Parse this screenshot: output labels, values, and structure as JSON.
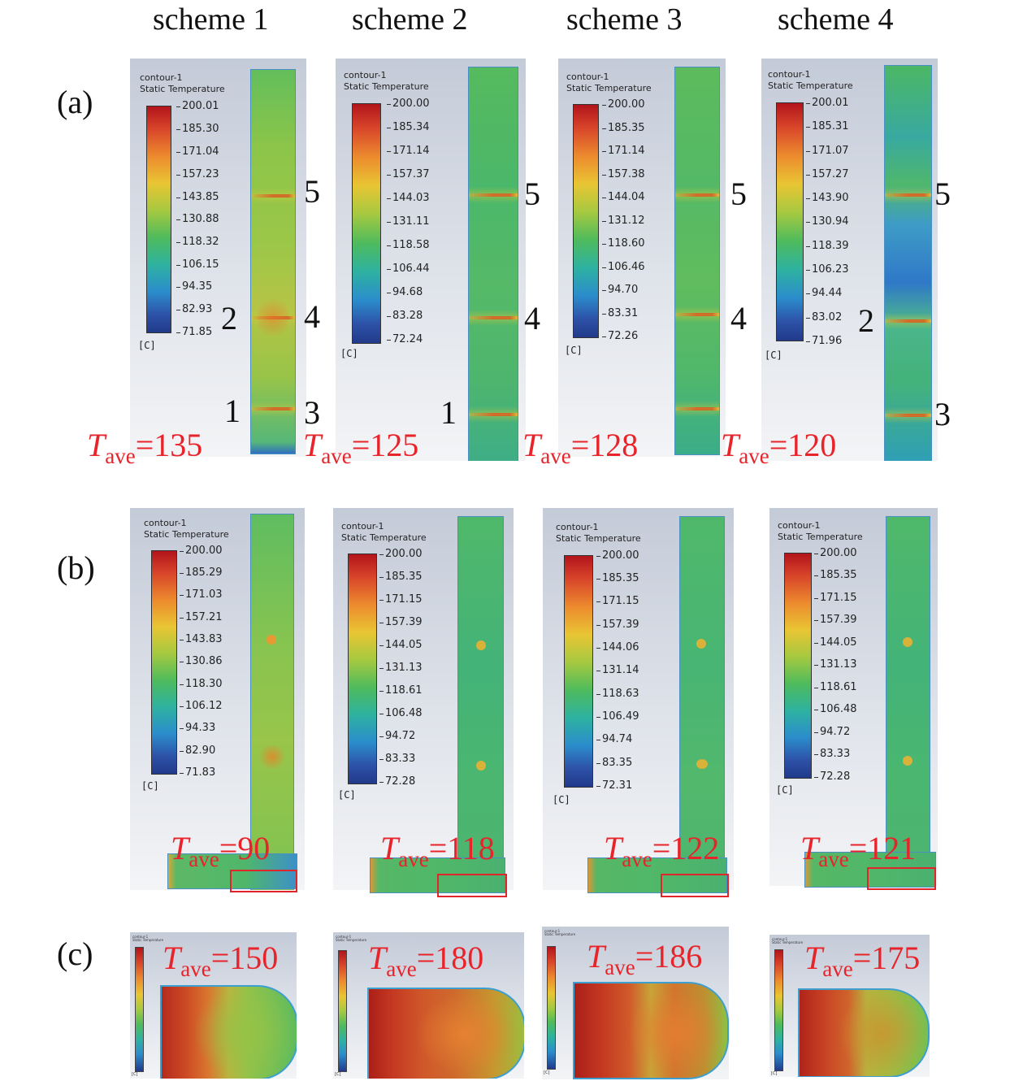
{
  "schemes": [
    "scheme 1",
    "scheme 2",
    "scheme 3",
    "scheme 4"
  ],
  "row_labels": [
    "(a)",
    "(b)",
    "(c)"
  ],
  "legend": {
    "title_line1": "contour-1",
    "title_line2": "Static Temperature",
    "unit": "[C]"
  },
  "colors": {
    "tave_text": "#e8232a",
    "box_outline": "#e0252b",
    "hot": "#b2141b",
    "cool": "#213a8a"
  },
  "row_a": {
    "panels": [
      {
        "ticks": [
          "200.01",
          "185.30",
          "171.04",
          "157.23",
          "143.85",
          "130.88",
          "118.32",
          "106.15",
          "94.35",
          "82.93",
          "71.85"
        ],
        "markers_right": [
          "5",
          "4",
          "3"
        ],
        "markers_left": [
          "2",
          "1"
        ],
        "tave_label": "T",
        "tave_sub": "ave",
        "tave_value": "=135"
      },
      {
        "ticks": [
          "200.00",
          "185.34",
          "171.14",
          "157.37",
          "144.03",
          "131.11",
          "118.58",
          "106.44",
          "94.68",
          "83.28",
          "72.24"
        ],
        "markers_right": [
          "5",
          "4"
        ],
        "markers_left": [
          "1"
        ],
        "tave_label": "T",
        "tave_sub": "ave",
        "tave_value": "=125"
      },
      {
        "ticks": [
          "200.00",
          "185.35",
          "171.14",
          "157.38",
          "144.04",
          "131.12",
          "118.60",
          "106.46",
          "94.70",
          "83.31",
          "72.26"
        ],
        "markers_right": [
          "5",
          "4"
        ],
        "markers_left": [],
        "tave_label": "T",
        "tave_sub": "ave",
        "tave_value": "=128"
      },
      {
        "ticks": [
          "200.01",
          "185.31",
          "171.07",
          "157.27",
          "143.90",
          "130.94",
          "118.39",
          "106.23",
          "94.44",
          "83.02",
          "71.96"
        ],
        "markers_right": [
          "5",
          "3"
        ],
        "markers_left": [
          "2"
        ],
        "tave_label": "T",
        "tave_sub": "ave",
        "tave_value": "=120"
      }
    ]
  },
  "row_b": {
    "panels": [
      {
        "ticks": [
          "200.00",
          "185.29",
          "171.03",
          "157.21",
          "143.83",
          "130.86",
          "118.30",
          "106.12",
          "94.33",
          "82.90",
          "71.83"
        ],
        "tave_label": "T",
        "tave_sub": "ave",
        "tave_value": "=90"
      },
      {
        "ticks": [
          "200.00",
          "185.35",
          "171.15",
          "157.39",
          "144.05",
          "131.13",
          "118.61",
          "106.48",
          "94.72",
          "83.33",
          "72.28"
        ],
        "tave_label": "T",
        "tave_sub": "ave",
        "tave_value": "=118"
      },
      {
        "ticks": [
          "200.00",
          "185.35",
          "171.15",
          "157.39",
          "144.06",
          "131.14",
          "118.63",
          "106.49",
          "94.74",
          "83.35",
          "72.31"
        ],
        "tave_label": "T",
        "tave_sub": "ave",
        "tave_value": "=122"
      },
      {
        "ticks": [
          "200.00",
          "185.35",
          "171.15",
          "157.39",
          "144.05",
          "131.13",
          "118.61",
          "106.48",
          "94.72",
          "83.33",
          "72.28"
        ],
        "tave_label": "T",
        "tave_sub": "ave",
        "tave_value": "=121"
      }
    ]
  },
  "row_c": {
    "panels": [
      {
        "tave_label": "T",
        "tave_sub": "ave",
        "tave_value": "=150"
      },
      {
        "tave_label": "T",
        "tave_sub": "ave",
        "tave_value": "=180"
      },
      {
        "tave_label": "T",
        "tave_sub": "ave",
        "tave_value": "=186"
      },
      {
        "tave_label": "T",
        "tave_sub": "ave",
        "tave_value": "=175"
      }
    ]
  }
}
